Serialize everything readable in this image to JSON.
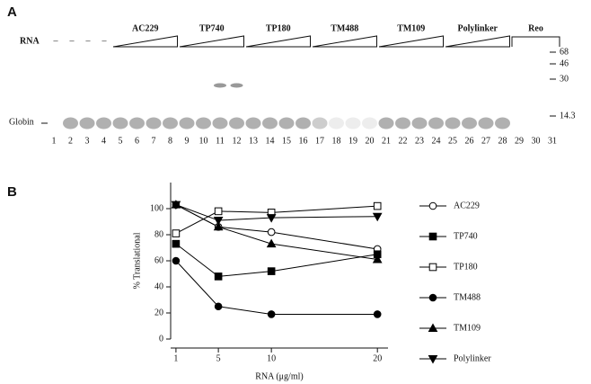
{
  "panel_a": {
    "label": "A",
    "rna_label": "RNA",
    "dashes": [
      "–",
      "–",
      "–",
      "–"
    ],
    "groups": [
      "AC229",
      "TP740",
      "TP180",
      "TM488",
      "TM109",
      "Polylinker",
      "Reo"
    ],
    "markers": [
      "68",
      "46",
      "30",
      "14.3"
    ],
    "globin_label": "Globin",
    "lanes": [
      "1",
      "2",
      "3",
      "4",
      "5",
      "6",
      "7",
      "8",
      "9",
      "10",
      "11",
      "12",
      "13",
      "14",
      "15",
      "16",
      "17",
      "18",
      "19",
      "20",
      "21",
      "22",
      "23",
      "24",
      "25",
      "26",
      "27",
      "28",
      "29",
      "30",
      "31"
    ]
  },
  "panel_b_label": "B",
  "chart_data": {
    "type": "line",
    "ylabel": "% Translational",
    "xlabel": "RNA (μg/ml)",
    "x": [
      1,
      5,
      10,
      20
    ],
    "xlim": [
      0.5,
      21
    ],
    "xticks": [
      1,
      5,
      10,
      20
    ],
    "ylim": [
      0,
      120
    ],
    "yticks": [
      0,
      20,
      40,
      60,
      80,
      100
    ],
    "grid": false,
    "legend": "right",
    "series": [
      {
        "name": "AC229",
        "color": "#000000",
        "marker": "circle-open",
        "values": [
          103,
          86,
          82,
          69
        ]
      },
      {
        "name": "TP740",
        "color": "#000000",
        "marker": "square",
        "values": [
          73,
          48,
          52,
          65
        ]
      },
      {
        "name": "TP180",
        "color": "#000000",
        "marker": "square-open",
        "values": [
          81,
          98,
          97,
          102
        ]
      },
      {
        "name": "TM488",
        "color": "#000000",
        "marker": "circle",
        "values": [
          60,
          25,
          19,
          19
        ]
      },
      {
        "name": "TM109",
        "color": "#000000",
        "marker": "triangle-up",
        "values": [
          103,
          86,
          73,
          61
        ]
      },
      {
        "name": "Polylinker",
        "color": "#000000",
        "marker": "triangle-down",
        "values": [
          103,
          91,
          93,
          94
        ]
      }
    ]
  }
}
